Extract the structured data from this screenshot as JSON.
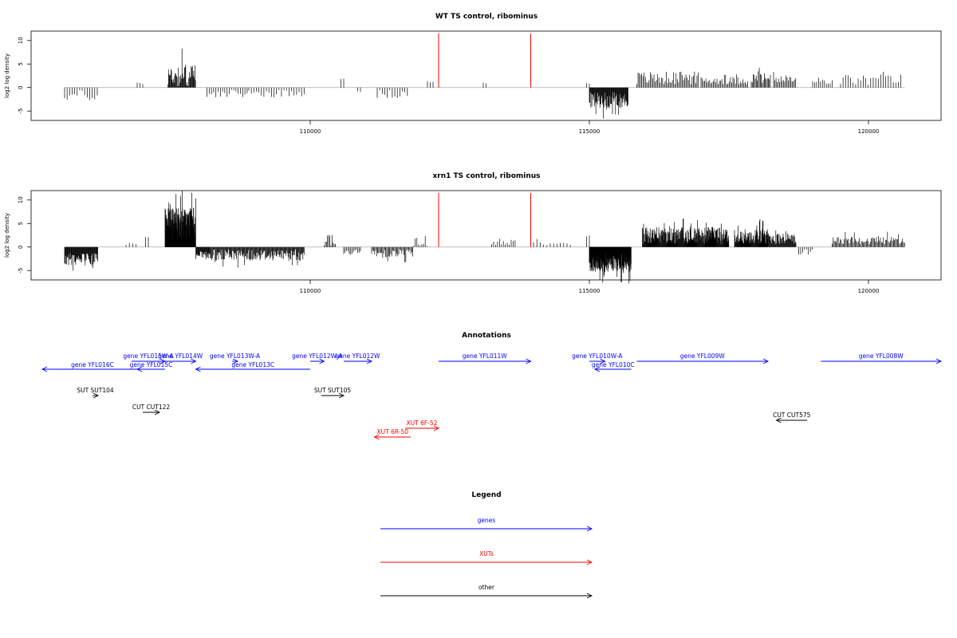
{
  "colors": {
    "gene": "#0000ff",
    "xut": "#ff0000",
    "other": "#000000",
    "peak": "#ff0000",
    "baseline": "#aaaaaa"
  },
  "panels": [
    {
      "title": "WT TS control, ribominus",
      "ylabel": "log2 log density"
    },
    {
      "title": "xrn1 TS control, ribominus",
      "ylabel": "log2 log density"
    }
  ],
  "annotations": {
    "title": "Annotations",
    "items": [
      {
        "label": "gene YFL016C",
        "kind": "gene",
        "dir": "rev",
        "start": 105200,
        "end": 107000,
        "row": 2
      },
      {
        "label": "gene YFL015W-A",
        "kind": "gene",
        "dir": "fwd",
        "start": 106800,
        "end": 107400,
        "row": 0
      },
      {
        "label": "gene YFL015C",
        "kind": "gene",
        "dir": "rev",
        "start": 106900,
        "end": 107400,
        "row": 1
      },
      {
        "label": "gene YFL014W",
        "kind": "gene",
        "dir": "fwd",
        "start": 107400,
        "end": 107950,
        "row": 0
      },
      {
        "label": "gene YFL013W-A",
        "kind": "gene",
        "dir": "fwd",
        "start": 108600,
        "end": 108700,
        "row": 0
      },
      {
        "label": "gene YFL013C",
        "kind": "gene",
        "dir": "rev",
        "start": 107950,
        "end": 110000,
        "row": 1
      },
      {
        "label": "gene YFL012W-A",
        "kind": "gene",
        "dir": "fwd",
        "start": 110000,
        "end": 110250,
        "row": 0
      },
      {
        "label": "gene YFL012W",
        "kind": "gene",
        "dir": "fwd",
        "start": 110600,
        "end": 111100,
        "row": 0
      },
      {
        "label": "gene YFL011W",
        "kind": "gene",
        "dir": "fwd",
        "start": 112300,
        "end": 113950,
        "row": 0
      },
      {
        "label": "gene YFL010W-A",
        "kind": "gene",
        "dir": "fwd",
        "start": 115000,
        "end": 115280,
        "row": 0
      },
      {
        "label": "gene YFL010C",
        "kind": "gene",
        "dir": "rev",
        "start": 115100,
        "end": 115750,
        "row": 1
      },
      {
        "label": "gene YFL009W",
        "kind": "gene",
        "dir": "fwd",
        "start": 115850,
        "end": 118200,
        "row": 0
      },
      {
        "label": "gene YFL008W",
        "kind": "gene",
        "dir": "fwd",
        "start": 119150,
        "end": 121300,
        "row": 0
      },
      {
        "label": "SUT SUT104",
        "kind": "other",
        "dir": "fwd",
        "start": 106100,
        "end": 106200,
        "row": 3
      },
      {
        "label": "CUT CUT122",
        "kind": "other",
        "dir": "fwd",
        "start": 107000,
        "end": 107300,
        "row": 4
      },
      {
        "label": "SUT SUT105",
        "kind": "other",
        "dir": "fwd",
        "start": 110200,
        "end": 110600,
        "row": 3
      },
      {
        "label": "CUT CUT575",
        "kind": "other",
        "dir": "rev",
        "start": 118350,
        "end": 118900,
        "row": 5
      },
      {
        "label": "XUT 6F-52",
        "kind": "xut",
        "dir": "fwd",
        "start": 111700,
        "end": 112300,
        "row": 6
      },
      {
        "label": "XUT 6R-50",
        "kind": "xut",
        "dir": "rev",
        "start": 111150,
        "end": 111800,
        "row": 7
      }
    ]
  },
  "legend": {
    "title": "Legend",
    "items": [
      {
        "label": "genes",
        "kind": "gene"
      },
      {
        "label": "XUTs",
        "kind": "xut"
      },
      {
        "label": "other",
        "kind": "other"
      }
    ]
  },
  "chart_data": [
    {
      "type": "bar",
      "title": "WT TS control, ribominus",
      "ylabel": "log2 log density",
      "xlim": [
        105000,
        121300
      ],
      "ylim": [
        -7,
        12
      ],
      "xticks": [
        110000,
        115000,
        120000
      ],
      "yticks": [
        -5,
        0,
        5,
        10
      ],
      "red_peaks": [
        112300,
        113950
      ],
      "segments": [
        {
          "start": 105600,
          "end": 106200,
          "mean": -1.7,
          "amp": 1.2,
          "spacing": 45
        },
        {
          "start": 106900,
          "end": 107000,
          "mean": 1,
          "amp": 0.3,
          "spacing": 50
        },
        {
          "start": 107450,
          "end": 107950,
          "mean": 2.6,
          "amp": 2.6,
          "spacing": 11
        },
        {
          "start": 108150,
          "end": 108900,
          "mean": -1.3,
          "amp": 0.8,
          "spacing": 40
        },
        {
          "start": 108900,
          "end": 109900,
          "mean": -1.2,
          "amp": 0.8,
          "spacing": 45
        },
        {
          "start": 110550,
          "end": 110600,
          "mean": 2,
          "amp": 0.2,
          "spacing": 50
        },
        {
          "start": 110850,
          "end": 110900,
          "mean": -0.8,
          "amp": 0.2,
          "spacing": 50
        },
        {
          "start": 111200,
          "end": 111750,
          "mean": -1.4,
          "amp": 0.9,
          "spacing": 45
        },
        {
          "start": 112100,
          "end": 112200,
          "mean": 1.2,
          "amp": 0.5,
          "spacing": 50
        },
        {
          "start": 113100,
          "end": 113150,
          "mean": 0.9,
          "amp": 0.2,
          "spacing": 50
        },
        {
          "start": 114950,
          "end": 115000,
          "mean": 1,
          "amp": 0.2,
          "spacing": 50
        },
        {
          "start": 115000,
          "end": 115700,
          "mean": -2.7,
          "amp": 1.7,
          "spacing": 9
        },
        {
          "start": 115850,
          "end": 116950,
          "mean": 2,
          "amp": 1.4,
          "spacing": 22
        },
        {
          "start": 117000,
          "end": 117850,
          "mean": 1.5,
          "amp": 0.8,
          "spacing": 22
        },
        {
          "start": 117900,
          "end": 118250,
          "mean": 2,
          "amp": 1.2,
          "spacing": 18
        },
        {
          "start": 118300,
          "end": 118700,
          "mean": 1.5,
          "amp": 0.8,
          "spacing": 22
        },
        {
          "start": 119000,
          "end": 119350,
          "mean": 1.2,
          "amp": 0.6,
          "spacing": 35
        },
        {
          "start": 119500,
          "end": 120600,
          "mean": 1.6,
          "amp": 1.2,
          "spacing": 45
        }
      ]
    },
    {
      "type": "bar",
      "title": "xrn1 TS control, ribominus",
      "ylabel": "log2 log density",
      "xlim": [
        105000,
        121300
      ],
      "ylim": [
        -7,
        12
      ],
      "xticks": [
        110000,
        115000,
        120000
      ],
      "yticks": [
        -5,
        0,
        5,
        10
      ],
      "red_peaks": [
        112300,
        113950
      ],
      "segments": [
        {
          "start": 105600,
          "end": 106200,
          "mean": -2.6,
          "amp": 1.4,
          "spacing": 9
        },
        {
          "start": 106700,
          "end": 106900,
          "mean": 0.6,
          "amp": 0.3,
          "spacing": 60
        },
        {
          "start": 107050,
          "end": 107100,
          "mean": 2,
          "amp": 0.3,
          "spacing": 50
        },
        {
          "start": 107400,
          "end": 107950,
          "mean": 5,
          "amp": 3.5,
          "spacing": 4
        },
        {
          "start": 107950,
          "end": 108200,
          "mean": -1.8,
          "amp": 0.9,
          "spacing": 9
        },
        {
          "start": 108200,
          "end": 109900,
          "mean": -1.7,
          "amp": 1.2,
          "spacing": 12
        },
        {
          "start": 110250,
          "end": 110450,
          "mean": 1.5,
          "amp": 1.2,
          "spacing": 20
        },
        {
          "start": 110600,
          "end": 110900,
          "mean": -1.2,
          "amp": 0.6,
          "spacing": 25
        },
        {
          "start": 111100,
          "end": 111850,
          "mean": -1.3,
          "amp": 1.0,
          "spacing": 18
        },
        {
          "start": 111850,
          "end": 112100,
          "mean": 1.3,
          "amp": 1.2,
          "spacing": 30
        },
        {
          "start": 113250,
          "end": 113700,
          "mean": 1,
          "amp": 0.7,
          "spacing": 35
        },
        {
          "start": 114000,
          "end": 114700,
          "mean": 0.7,
          "amp": 0.5,
          "spacing": 60
        },
        {
          "start": 114950,
          "end": 115000,
          "mean": 2.3,
          "amp": 0.2,
          "spacing": 50
        },
        {
          "start": 115000,
          "end": 115750,
          "mean": -3.2,
          "amp": 2.2,
          "spacing": 4
        },
        {
          "start": 115950,
          "end": 117500,
          "mean": 2.4,
          "amp": 1.8,
          "spacing": 7
        },
        {
          "start": 117600,
          "end": 118200,
          "mean": 2.3,
          "amp": 1.6,
          "spacing": 7
        },
        {
          "start": 118200,
          "end": 118700,
          "mean": 1.8,
          "amp": 1.2,
          "spacing": 10
        },
        {
          "start": 118750,
          "end": 119000,
          "mean": -1.2,
          "amp": 0.7,
          "spacing": 35
        },
        {
          "start": 119350,
          "end": 120650,
          "mean": 1.4,
          "amp": 0.8,
          "spacing": 18
        }
      ]
    }
  ]
}
